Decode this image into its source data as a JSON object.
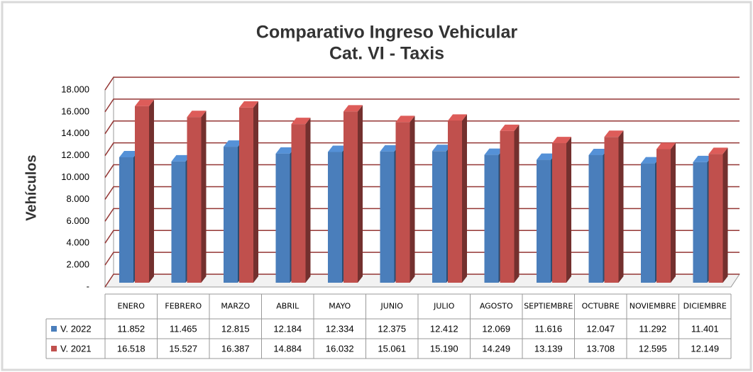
{
  "chart_data": {
    "type": "bar",
    "title": "Comparativo Ingreso Vehicular",
    "subtitle": "Cat. VI - Taxis",
    "y_label": "Vehículos",
    "categories": [
      "ENERO",
      "FEBRERO",
      "MARZO",
      "ABRIL",
      "MAYO",
      "JUNIO",
      "JULIO",
      "AGOSTO",
      "SEPTIEMBRE",
      "OCTUBRE",
      "NOVIEMBRE",
      "DICIEMBRE"
    ],
    "series": [
      {
        "name": "V. 2022",
        "color": "#4a7ebb",
        "values": [
          11852,
          11465,
          12815,
          12184,
          12334,
          12375,
          12412,
          12069,
          11616,
          12047,
          11292,
          11401
        ],
        "value_labels": [
          "11.852",
          "11.465",
          "12.815",
          "12.184",
          "12.334",
          "12.375",
          "12.412",
          "12.069",
          "11.616",
          "12.047",
          "11.292",
          "11.401"
        ]
      },
      {
        "name": "V. 2021",
        "color": "#c0504d",
        "values": [
          16518,
          15527,
          16387,
          14884,
          16032,
          15061,
          15190,
          14249,
          13139,
          13708,
          12595,
          12149
        ],
        "value_labels": [
          "16.518",
          "15.527",
          "16.387",
          "14.884",
          "16.032",
          "15.061",
          "15.190",
          "14.249",
          "13.139",
          "13.708",
          "12.595",
          "12.149"
        ]
      }
    ],
    "ylim": [
      0,
      18000
    ],
    "yticks": [
      {
        "value": 0,
        "label": "-"
      },
      {
        "value": 2000,
        "label": "2.000"
      },
      {
        "value": 4000,
        "label": "4.000"
      },
      {
        "value": 6000,
        "label": "6.000"
      },
      {
        "value": 8000,
        "label": "8.000"
      },
      {
        "value": 10000,
        "label": "10.000"
      },
      {
        "value": 12000,
        "label": "12.000"
      },
      {
        "value": 14000,
        "label": "14.000"
      },
      {
        "value": 16000,
        "label": "16.000"
      },
      {
        "value": 18000,
        "label": "18.000"
      }
    ],
    "grid": true
  }
}
